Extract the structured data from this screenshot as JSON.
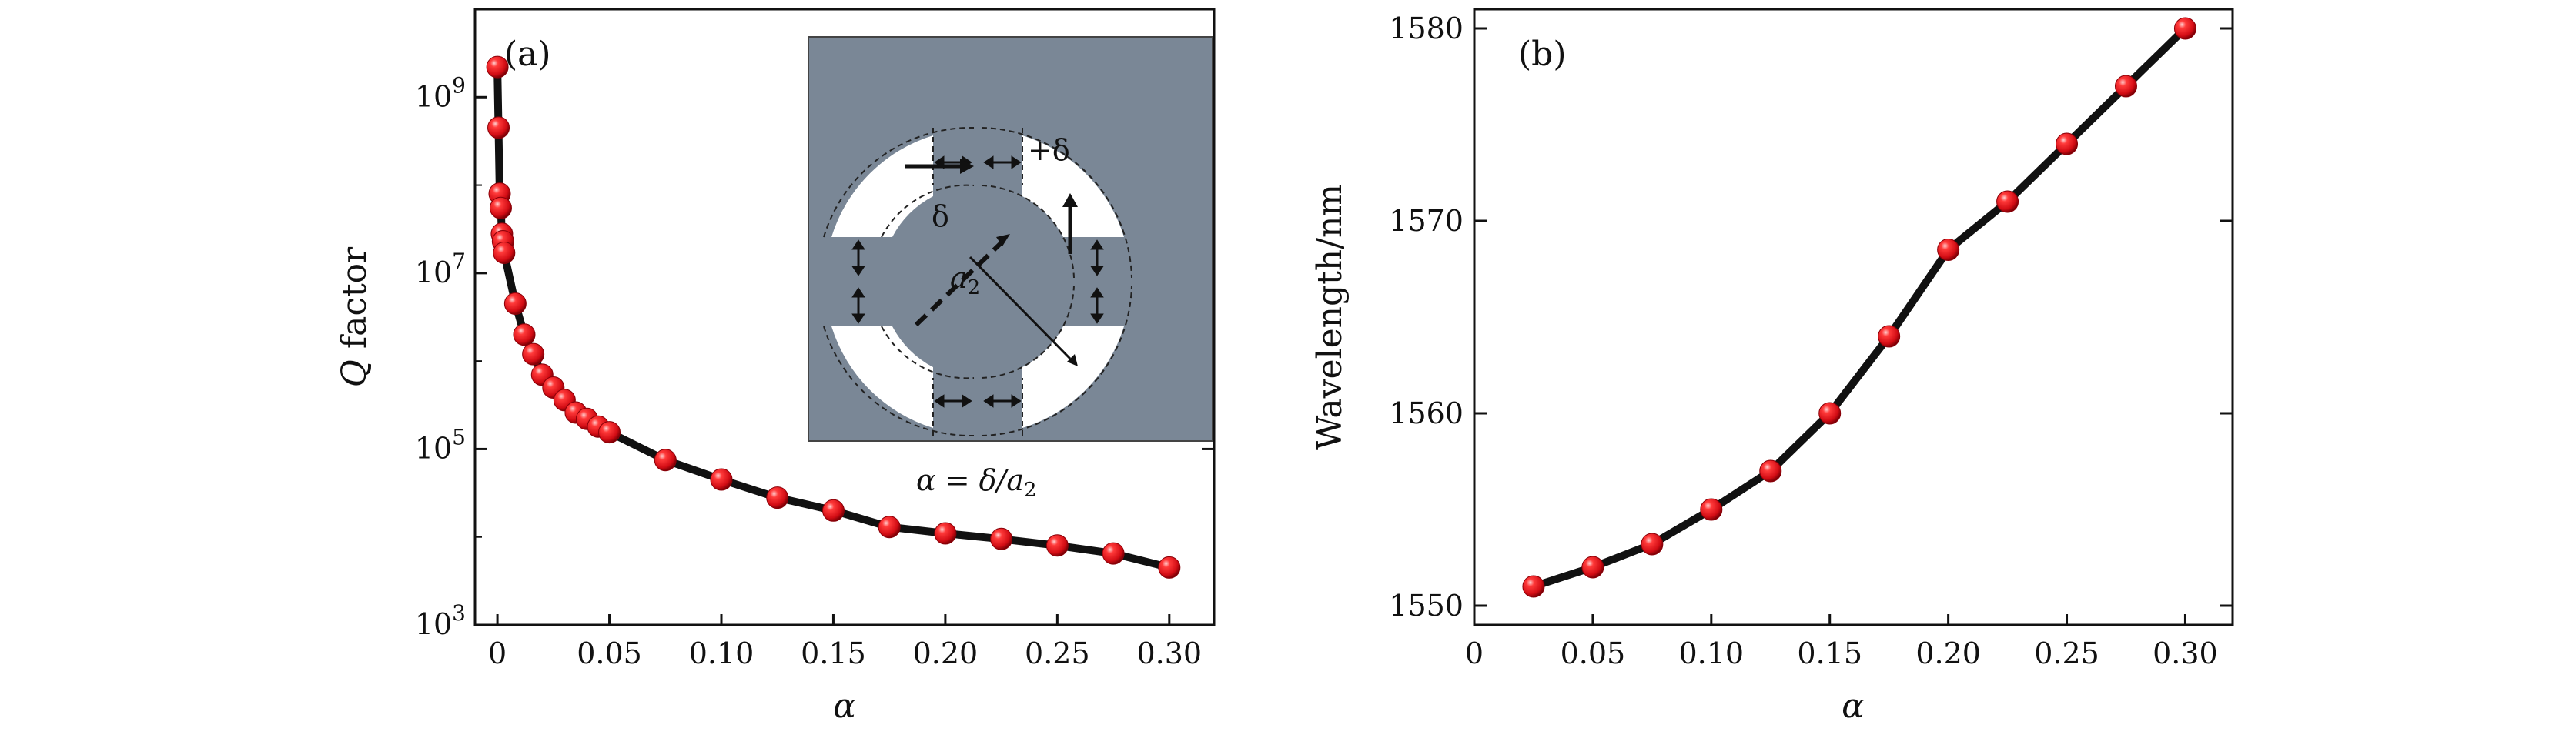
{
  "chart_data": [
    {
      "type": "scatter",
      "panel_label": "(a)",
      "xlabel": "α",
      "ylabel_symbol": "Q",
      "ylabel_suffix": " factor",
      "yscale": "log",
      "xlim": [
        -0.01,
        0.32
      ],
      "ylim_exponent": [
        3,
        10
      ],
      "xticks": [
        "0",
        "0.05",
        "0.10",
        "0.15",
        "0.20",
        "0.25",
        "0.30"
      ],
      "yticks": [
        {
          "base": "10",
          "exp": "9"
        },
        {
          "base": "10",
          "exp": "7"
        },
        {
          "base": "10",
          "exp": "5"
        },
        {
          "base": "10",
          "exp": "3"
        }
      ],
      "series": [
        {
          "name": "Q factor",
          "line_color": "#111111",
          "marker_color": "#e8141e",
          "x": [
            0.0,
            0.0005,
            0.001,
            0.0015,
            0.002,
            0.0025,
            0.003,
            0.008,
            0.012,
            0.016,
            0.02,
            0.025,
            0.03,
            0.035,
            0.04,
            0.045,
            0.05,
            0.075,
            0.1,
            0.125,
            0.15,
            0.175,
            0.2,
            0.225,
            0.25,
            0.275,
            0.3
          ],
          "y": [
            2200000000.0,
            450000000.0,
            80000000.0,
            55000000.0,
            28000000.0,
            23000000.0,
            17000000.0,
            4500000.0,
            2000000.0,
            1200000.0,
            700000.0,
            500000.0,
            360000.0,
            260000.0,
            220000.0,
            180000.0,
            155000.0,
            75000.0,
            45000.0,
            28000.0,
            20000.0,
            13000.0,
            11000.0,
            9500.0,
            8000.0,
            6500.0,
            4500.0
          ]
        }
      ],
      "inset": {
        "delta_label": "+δ",
        "delta_symbol": "δ",
        "radius_symbol": "a",
        "radius_subscript": "2",
        "caption": "α = δ/a",
        "caption_subscript": "2",
        "background_color": "#7a8796"
      }
    },
    {
      "type": "line",
      "panel_label": "(b)",
      "xlabel": "α",
      "ylabel": "Wavelength/nm",
      "xlim": [
        0,
        0.32
      ],
      "ylim": [
        1549,
        1581
      ],
      "xticks": [
        "0",
        "0.05",
        "0.10",
        "0.15",
        "0.20",
        "0.25",
        "0.30"
      ],
      "yticks": [
        "1550",
        "1560",
        "1570",
        "1580"
      ],
      "series": [
        {
          "name": "Wavelength",
          "line_color": "#111111",
          "marker_color": "#e8141e",
          "x": [
            0.025,
            0.05,
            0.075,
            0.1,
            0.125,
            0.15,
            0.175,
            0.2,
            0.225,
            0.25,
            0.275,
            0.3
          ],
          "y": [
            1551,
            1552,
            1553.2,
            1555,
            1557,
            1560,
            1564,
            1568.5,
            1571,
            1574,
            1577,
            1580
          ]
        }
      ]
    }
  ]
}
